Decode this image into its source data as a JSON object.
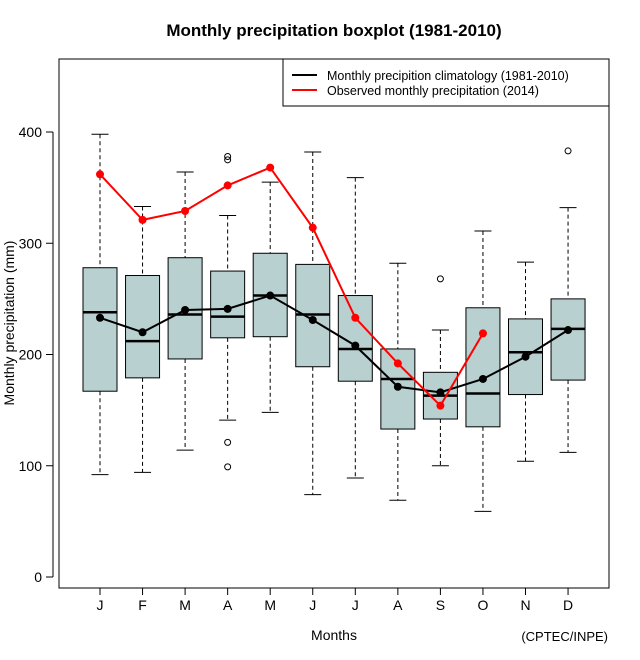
{
  "chart_data": {
    "type": "boxplot",
    "title": "Monthly precipitation boxplot (1981-2010)",
    "xlabel": "Months",
    "ylabel": "Monthly precipitation (mm)",
    "credit": "(CPTEC/INPE)",
    "ylim": [
      -5,
      475
    ],
    "yticks": [
      0,
      100,
      200,
      300,
      400
    ],
    "ytick_labels": [
      "0",
      "100",
      "200",
      "300",
      "400"
    ],
    "categories": [
      "J",
      "F",
      "M",
      "A",
      "M",
      "J",
      "J",
      "A",
      "S",
      "O",
      "N",
      "D"
    ],
    "box_color": "#b8d0d0",
    "boxes": [
      {
        "month": "J",
        "whisker_low": 92,
        "q1": 167,
        "median": 238,
        "q3": 278,
        "whisker_high": 398,
        "outliers": []
      },
      {
        "month": "F",
        "whisker_low": 94,
        "q1": 179,
        "median": 212,
        "q3": 271,
        "whisker_high": 333,
        "outliers": []
      },
      {
        "month": "M",
        "whisker_low": 114,
        "q1": 196,
        "median": 236,
        "q3": 287,
        "whisker_high": 364,
        "outliers": []
      },
      {
        "month": "A",
        "whisker_low": 141,
        "q1": 215,
        "median": 234,
        "q3": 275,
        "whisker_high": 325,
        "outliers": [
          378,
          375,
          121,
          99
        ]
      },
      {
        "month": "M",
        "whisker_low": 148,
        "q1": 216,
        "median": 253,
        "q3": 291,
        "whisker_high": 355,
        "outliers": []
      },
      {
        "month": "J",
        "whisker_low": 74,
        "q1": 189,
        "median": 236,
        "q3": 281,
        "whisker_high": 382,
        "outliers": []
      },
      {
        "month": "J",
        "whisker_low": 89,
        "q1": 176,
        "median": 205,
        "q3": 253,
        "whisker_high": 359,
        "outliers": []
      },
      {
        "month": "A",
        "whisker_low": 69,
        "q1": 133,
        "median": 178,
        "q3": 205,
        "whisker_high": 282,
        "outliers": []
      },
      {
        "month": "S",
        "whisker_low": 100,
        "q1": 142,
        "median": 163,
        "q3": 184,
        "whisker_high": 222,
        "outliers": [
          268
        ]
      },
      {
        "month": "O",
        "whisker_low": 59,
        "q1": 135,
        "median": 165,
        "q3": 242,
        "whisker_high": 311,
        "outliers": []
      },
      {
        "month": "N",
        "whisker_low": 104,
        "q1": 164,
        "median": 202,
        "q3": 232,
        "whisker_high": 283,
        "outliers": []
      },
      {
        "month": "D",
        "whisker_low": 112,
        "q1": 177,
        "median": 223,
        "q3": 250,
        "whisker_high": 332,
        "outliers": [
          383
        ]
      }
    ],
    "series": [
      {
        "name": "Monthly precipition climatology (1981-2010)",
        "color": "#000000",
        "values": [
          233,
          220,
          240,
          241,
          253,
          231,
          208,
          171,
          166,
          178,
          198,
          222
        ]
      },
      {
        "name": "Observed monthly precipitation (2014)",
        "color": "#ff0000",
        "values": [
          362,
          321,
          329,
          352,
          368,
          314,
          233,
          192,
          154,
          219,
          null,
          null
        ]
      }
    ],
    "legend_position": "top-right",
    "grid": false
  }
}
